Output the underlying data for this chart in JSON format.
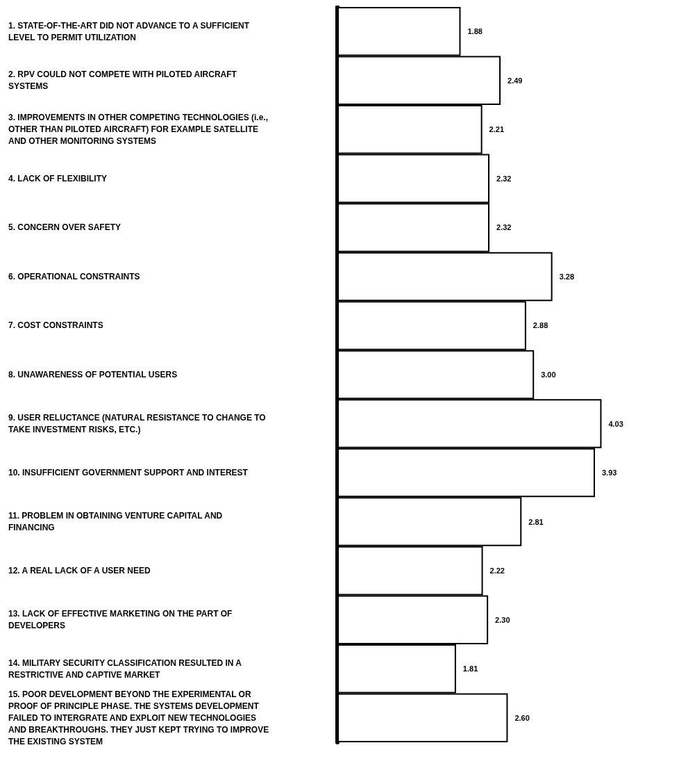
{
  "chart_data": {
    "type": "bar",
    "orientation": "horizontal",
    "categories": [
      "1. STATE-OF-THE-ART DID NOT ADVANCE TO A SUFFICIENT LEVEL TO PERMIT UTILIZATION",
      "2. RPV COULD NOT COMPETE WITH PILOTED AIRCRAFT SYSTEMS",
      "3. IMPROVEMENTS IN OTHER COMPETING TECHNOLOGIES (i.e., OTHER THAN PILOTED AIRCRAFT) FOR EXAMPLE SATELLITE AND OTHER MONITORING SYSTEMS",
      "4. LACK OF FLEXIBILITY",
      "5. CONCERN OVER SAFETY",
      "6. OPERATIONAL CONSTRAINTS",
      "7. COST CONSTRAINTS",
      "8. UNAWARENESS OF POTENTIAL USERS",
      "9. USER RELUCTANCE (NATURAL RESISTANCE TO CHANGE TO TAKE INVESTMENT RISKS, ETC.)",
      "10. INSUFFICIENT GOVERNMENT SUPPORT AND INTEREST",
      "11. PROBLEM IN OBTAINING VENTURE CAPITAL AND FINANCING",
      "12. A REAL LACK OF A USER NEED",
      "13. LACK OF EFFECTIVE MARKETING ON THE PART OF DEVELOPERS",
      "14. MILITARY SECURITY CLASSIFICATION RESULTED IN A RESTRICTIVE AND CAPTIVE MARKET",
      "15. POOR DEVELOPMENT BEYOND THE EXPERIMENTAL OR PROOF OF PRINCIPLE PHASE. THE SYSTEMS DEVELOPMENT FAILED TO INTERGRATE AND EXPLOIT NEW TECHNOLOGIES AND BREAKTHROUGHS. THEY JUST KEPT TRYING TO IMPROVE THE EXISTING SYSTEM"
    ],
    "values": [
      1.88,
      2.49,
      2.21,
      2.32,
      2.32,
      3.28,
      2.88,
      3.0,
      4.03,
      3.93,
      2.81,
      2.22,
      2.3,
      1.81,
      2.6
    ],
    "value_labels": [
      "1.88",
      "2.49",
      "2.21",
      "2.32",
      "2.32",
      "3.28",
      "2.88",
      "3.00",
      "4.03",
      "3.93",
      "2.81",
      "2.22",
      "2.30",
      "1.81",
      "2.60"
    ],
    "color": "#ffffff",
    "tick_labels": "y",
    "grid": false,
    "data_labels": true
  }
}
